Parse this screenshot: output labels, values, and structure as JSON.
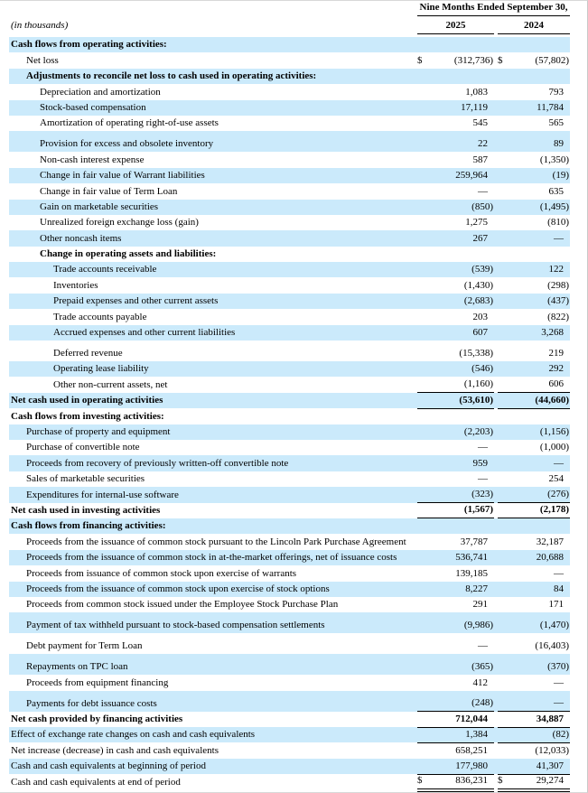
{
  "document": {
    "units_label": "(in thousands)",
    "statement_kind": "Condensed Consolidated Statements of Cash Flows"
  },
  "header": {
    "period_title": "Nine Months Ended September 30,",
    "col_2025": "2025",
    "col_2024": "2024"
  },
  "colors": {
    "row_highlight": "#cbeafb",
    "rule": "#000000",
    "page_edge": "#c9c9c9"
  },
  "rows": [
    {
      "label": "Cash flows from operating activities:",
      "indent": 0,
      "bold": true,
      "shaded": true
    },
    {
      "label": "Net loss",
      "indent": 1,
      "d2025": "$",
      "v2025": "(312,736)",
      "d2024": "$",
      "v2024": "(57,802)"
    },
    {
      "label": "Adjustments to reconcile net loss to cash used in operating activities:",
      "indent": 1,
      "bold": true,
      "shaded": true
    },
    {
      "label": "Depreciation and amortization",
      "indent": 2,
      "v2025": "1,083",
      "v2024": "793"
    },
    {
      "label": "Stock-based compensation",
      "indent": 2,
      "shaded": true,
      "v2025": "17,119",
      "v2024": "11,784"
    },
    {
      "label": "Amortization of operating right-of-use assets",
      "indent": 2,
      "v2025": "545",
      "v2024": "565"
    },
    {
      "label": "Provision for excess and obsolete inventory",
      "indent": 2,
      "shaded": true,
      "tall": true,
      "v2025": "22",
      "v2024": "89"
    },
    {
      "label": "Non-cash interest expense",
      "indent": 2,
      "v2025": "587",
      "v2024": "(1,350)"
    },
    {
      "label": "Change in fair value of Warrant liabilities",
      "indent": 2,
      "shaded": true,
      "v2025": "259,964",
      "v2024": "(19)"
    },
    {
      "label": "Change in fair value of Term Loan",
      "indent": 2,
      "v2025": "—",
      "v2024": "635"
    },
    {
      "label": "Gain on marketable securities",
      "indent": 2,
      "shaded": true,
      "v2025": "(850)",
      "v2024": "(1,495)"
    },
    {
      "label": "Unrealized foreign exchange loss (gain)",
      "indent": 2,
      "v2025": "1,275",
      "v2024": "(810)"
    },
    {
      "label": "Other noncash items",
      "indent": 2,
      "shaded": true,
      "v2025": "267",
      "v2024": "—"
    },
    {
      "label": "Change in operating assets and liabilities:",
      "indent": 2,
      "bold": true
    },
    {
      "label": "Trade accounts receivable",
      "indent": 3,
      "shaded": true,
      "v2025": "(539)",
      "v2024": "122"
    },
    {
      "label": "Inventories",
      "indent": 3,
      "v2025": "(1,430)",
      "v2024": "(298)"
    },
    {
      "label": "Prepaid expenses and other current assets",
      "indent": 3,
      "shaded": true,
      "v2025": "(2,683)",
      "v2024": "(437)"
    },
    {
      "label": "Trade accounts payable",
      "indent": 3,
      "v2025": "203",
      "v2024": "(822)"
    },
    {
      "label": "Accrued expenses and other current liabilities",
      "indent": 3,
      "shaded": true,
      "v2025": "607",
      "v2024": "3,268"
    },
    {
      "label": "Deferred revenue",
      "indent": 3,
      "tall": true,
      "v2025": "(15,338)",
      "v2024": "219"
    },
    {
      "label": "Operating lease liability",
      "indent": 3,
      "shaded": true,
      "v2025": "(546)",
      "v2024": "292"
    },
    {
      "label": "Other non-current assets, net",
      "indent": 3,
      "v2025": "(1,160)",
      "v2024": "606",
      "rule": "single"
    },
    {
      "label": "Net cash used in operating activities",
      "indent": 0,
      "bold": true,
      "shaded": true,
      "v2025": "(53,610)",
      "v2024": "(44,660)",
      "rule": "single"
    },
    {
      "label": "Cash flows from investing activities:",
      "indent": 0,
      "bold": true
    },
    {
      "label": "Purchase of property and equipment",
      "indent": 1,
      "shaded": true,
      "v2025": "(2,203)",
      "v2024": "(1,156)"
    },
    {
      "label": "Purchase of convertible note",
      "indent": 1,
      "v2025": "—",
      "v2024": "(1,000)"
    },
    {
      "label": "Proceeds from recovery of previously written-off convertible note",
      "indent": 1,
      "shaded": true,
      "v2025": "959",
      "v2024": "—"
    },
    {
      "label": "Sales of marketable securities",
      "indent": 1,
      "v2025": "—",
      "v2024": "254"
    },
    {
      "label": "Expenditures for internal-use software",
      "indent": 1,
      "shaded": true,
      "v2025": "(323)",
      "v2024": "(276)",
      "rule": "single"
    },
    {
      "label": "Net cash used in investing activities",
      "indent": 0,
      "bold": true,
      "v2025": "(1,567)",
      "v2024": "(2,178)",
      "rule": "single"
    },
    {
      "label": "Cash flows from financing activities:",
      "indent": 0,
      "bold": true,
      "shaded": true
    },
    {
      "label": "Proceeds from the issuance of common stock pursuant to the Lincoln Park Purchase Agreement",
      "indent": 1,
      "v2025": "37,787",
      "v2024": "32,187"
    },
    {
      "label": "Proceeds from the issuance of common stock in at-the-market offerings, net of issuance costs",
      "indent": 1,
      "shaded": true,
      "v2025": "536,741",
      "v2024": "20,688"
    },
    {
      "label": "Proceeds from issuance of common stock upon exercise of warrants",
      "indent": 1,
      "v2025": "139,185",
      "v2024": "—"
    },
    {
      "label": "Proceeds from the issuance of common stock upon exercise of stock options",
      "indent": 1,
      "shaded": true,
      "v2025": "8,227",
      "v2024": "84"
    },
    {
      "label": "Proceeds from common stock issued under the Employee Stock Purchase Plan",
      "indent": 1,
      "v2025": "291",
      "v2024": "171"
    },
    {
      "label": "Payment of tax withheld pursuant to stock-based compensation settlements",
      "indent": 1,
      "shaded": true,
      "tall": true,
      "v2025": "(9,986)",
      "v2024": "(1,470)"
    },
    {
      "label": "Debt payment for Term Loan",
      "indent": 1,
      "tall": true,
      "v2025": "—",
      "v2024": "(16,403)"
    },
    {
      "label": "Repayments on TPC loan",
      "indent": 1,
      "shaded": true,
      "tall": true,
      "v2025": "(365)",
      "v2024": "(370)"
    },
    {
      "label": "Proceeds from equipment financing",
      "indent": 1,
      "v2025": "412",
      "v2024": "—"
    },
    {
      "label": "Payments for debt issuance costs",
      "indent": 1,
      "shaded": true,
      "tall": true,
      "v2025": "(248)",
      "v2024": "—",
      "rule": "single"
    },
    {
      "label": "Net cash provided by financing activities",
      "indent": 0,
      "bold": true,
      "v2025": "712,044",
      "v2024": "34,887",
      "rule": "single"
    },
    {
      "label": "Effect of exchange rate changes on cash and cash equivalents",
      "indent": 0,
      "shaded": true,
      "v2025": "1,384",
      "v2024": "(82)",
      "rule": "single"
    },
    {
      "label": "Net increase (decrease) in cash and cash equivalents",
      "indent": 0,
      "v2025": "658,251",
      "v2024": "(12,033)"
    },
    {
      "label": "Cash and cash equivalents at beginning of period",
      "indent": 0,
      "shaded": true,
      "v2025": "177,980",
      "v2024": "41,307",
      "rule": "single"
    },
    {
      "label": "Cash and cash equivalents at end of period",
      "indent": 0,
      "d2025": "$",
      "v2025": "836,231",
      "d2024": "$",
      "v2024": "29,274",
      "rule": "double"
    }
  ]
}
